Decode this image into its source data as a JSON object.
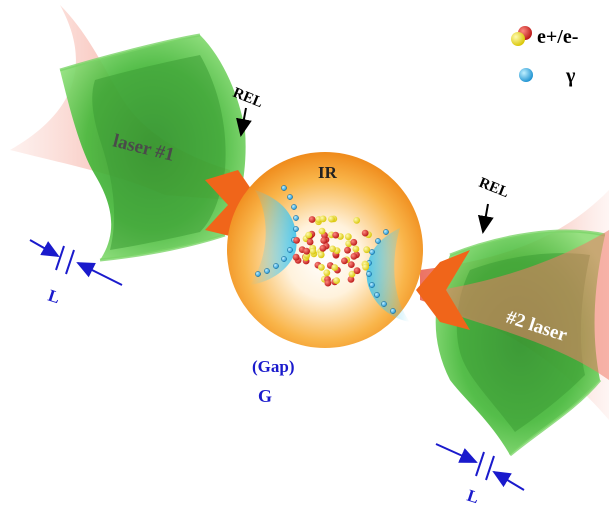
{
  "legend": {
    "pair_label": "e+/e-",
    "photon_label": "γ"
  },
  "labels": {
    "laser1": "laser #1",
    "laser2": "#2 laser",
    "rel_left": "REL",
    "rel_right": "REL",
    "ir": "IR",
    "gap": "(Gap)",
    "gap_symbol": "G",
    "thickness_left": "L",
    "thickness_right": "L"
  },
  "colors": {
    "ir_sphere": "#f5a030",
    "foil_green": "#4cc03a",
    "laser_beam": "#f28a7a",
    "arrow_orange": "#f0651a",
    "photon_cyan": "#2ab0e0",
    "electron_red": "#cc2020",
    "positron_yellow": "#f0e010",
    "annotation_blue": "#1a1acc"
  }
}
